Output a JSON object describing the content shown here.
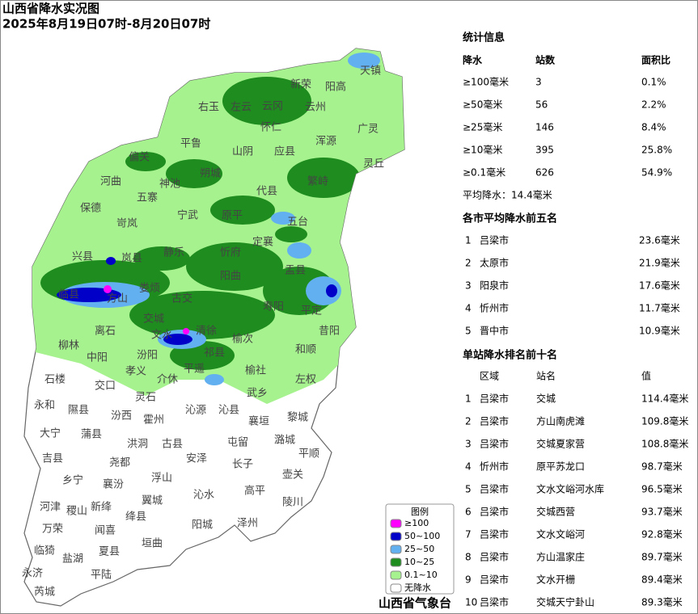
{
  "header": {
    "title": "山西省降水实况图",
    "subtitle": "2025年8月19日07时-8月20日07时"
  },
  "stats": {
    "title": "统计信息",
    "columns": [
      "降水",
      "站数",
      "面积比"
    ],
    "rows": [
      [
        "≥100毫米",
        "3",
        "0.1%"
      ],
      [
        "≥50毫米",
        "56",
        "2.2%"
      ],
      [
        "≥25毫米",
        "146",
        "8.4%"
      ],
      [
        "≥10毫米",
        "395",
        "25.8%"
      ],
      [
        "≥0.1毫米",
        "626",
        "54.9%"
      ]
    ],
    "average": "平均降水：14.4毫米"
  },
  "city_top5": {
    "title": "各市平均降水前五名",
    "rows": [
      [
        "1",
        "吕梁市",
        "23.6毫米"
      ],
      [
        "2",
        "太原市",
        "21.9毫米"
      ],
      [
        "3",
        "阳泉市",
        "17.6毫米"
      ],
      [
        "4",
        "忻州市",
        "11.7毫米"
      ],
      [
        "5",
        "晋中市",
        "10.9毫米"
      ]
    ]
  },
  "station_top10": {
    "title": "单站降水排名前十名",
    "columns": [
      "区域",
      "站名",
      "值"
    ],
    "rows": [
      [
        "1",
        "吕梁市",
        "交城",
        "114.4毫米"
      ],
      [
        "2",
        "吕梁市",
        "方山南虎滩",
        "109.8毫米"
      ],
      [
        "3",
        "吕梁市",
        "交城夏家营",
        "108.8毫米"
      ],
      [
        "4",
        "忻州市",
        "原平苏龙口",
        "98.7毫米"
      ],
      [
        "5",
        "吕梁市",
        "文水文峪河水库",
        "96.5毫米"
      ],
      [
        "6",
        "吕梁市",
        "交城西营",
        "93.7毫米"
      ],
      [
        "7",
        "吕梁市",
        "文水文峪河",
        "92.8毫米"
      ],
      [
        "8",
        "吕梁市",
        "方山温家庄",
        "89.7毫米"
      ],
      [
        "9",
        "吕梁市",
        "文水开栅",
        "89.4毫米"
      ],
      [
        "10",
        "吕梁市",
        "交城天宁卦山",
        "89.3毫米"
      ]
    ]
  },
  "legend": {
    "title": "图例",
    "items": [
      {
        "label": "≥100",
        "color": "#ff00ff"
      },
      {
        "label": "50~100",
        "color": "#0000c8"
      },
      {
        "label": "25~50",
        "color": "#62b0f0"
      },
      {
        "label": "10~25",
        "color": "#1e8c1e"
      },
      {
        "label": "0.1~10",
        "color": "#a6f28f"
      },
      {
        "label": "无降水",
        "color": "#ffffff"
      }
    ]
  },
  "footer": "山西省气象台",
  "map": {
    "labels": [
      "天镇",
      "阳高",
      "新荣",
      "左云",
      "云冈",
      "云州",
      "右玉",
      "怀仁",
      "广灵",
      "浑源",
      "平鲁",
      "山阴",
      "应县",
      "偏关",
      "灵丘",
      "朔城",
      "神池",
      "河曲",
      "繁峙",
      "代县",
      "五寨",
      "宁武",
      "原平",
      "五台",
      "保德",
      "岢岚",
      "静乐",
      "忻府",
      "定襄",
      "兴县",
      "岚县",
      "盂县",
      "阳曲",
      "临县",
      "方山",
      "娄烦",
      "古交",
      "寿阳",
      "平定",
      "昔阳",
      "交城",
      "离石",
      "柳林",
      "中阳",
      "汾阳",
      "文水",
      "清徐",
      "榆次",
      "祁县",
      "和顺",
      "石楼",
      "孝义",
      "介休",
      "平遥",
      "榆社",
      "左权",
      "交口",
      "灵石",
      "武乡",
      "永和",
      "隰县",
      "汾西",
      "霍州",
      "沁源",
      "沁县",
      "襄垣",
      "黎城",
      "大宁",
      "蒲县",
      "洪洞",
      "古县",
      "屯留",
      "潞城",
      "安泽",
      "长子",
      "平顺",
      "吉县",
      "尧都",
      "乡宁",
      "襄汾",
      "浮山",
      "壶关",
      "翼城",
      "高平",
      "沁水",
      "陵川",
      "河津",
      "稷山",
      "新绛",
      "绛县",
      "泽州",
      "阳城",
      "万荣",
      "闻喜",
      "临猗",
      "垣曲",
      "盐湖",
      "夏县",
      "永济",
      "平陆",
      "芮城"
    ]
  }
}
